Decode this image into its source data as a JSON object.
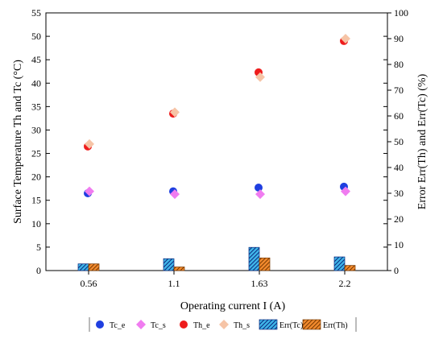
{
  "chart_data": {
    "type": "scatter",
    "categories": [
      "0.56",
      "1.1",
      "1.63",
      "2.2"
    ],
    "xlabel": "Operating current I (A)",
    "ylabel_left": "Surface Temperature Th and Tc (°C)",
    "ylabel_right": "Error Err(Th) and Err(Tc) (%)",
    "ylim_left": [
      0,
      55
    ],
    "yticks_left": [
      0,
      5,
      10,
      15,
      20,
      25,
      30,
      35,
      40,
      45,
      50,
      55
    ],
    "ylim_right": [
      0,
      100
    ],
    "yticks_right": [
      0,
      10,
      20,
      30,
      40,
      50,
      60,
      70,
      80,
      90,
      100
    ],
    "grid": false,
    "legend_position": "bottom",
    "series": [
      {
        "name": "Tc_e",
        "kind": "point",
        "axis": "left",
        "marker": "circle",
        "color": "#1f3fe0",
        "values": [
          16.5,
          16.9,
          17.7,
          17.9
        ]
      },
      {
        "name": "Tc_s",
        "kind": "point",
        "axis": "left",
        "marker": "diamond",
        "color": "#f07cf0",
        "values": [
          16.9,
          16.3,
          16.3,
          16.9
        ]
      },
      {
        "name": "Th_e",
        "kind": "point",
        "axis": "left",
        "marker": "circle",
        "color": "#ee1c1c",
        "values": [
          26.5,
          33.5,
          42.3,
          49.0
        ]
      },
      {
        "name": "Th_s",
        "kind": "point",
        "axis": "left",
        "marker": "diamond",
        "color": "#f6c4a6",
        "values": [
          27.0,
          33.8,
          41.3,
          49.5
        ]
      },
      {
        "name": "Err(Tc)",
        "kind": "bar",
        "axis": "right",
        "color": "#3fb6e8",
        "hatch": "blue",
        "values": [
          2.6,
          4.6,
          9.0,
          5.3
        ]
      },
      {
        "name": "Err(Th)",
        "kind": "bar",
        "axis": "right",
        "color": "#f28a2e",
        "hatch": "orange",
        "values": [
          2.6,
          1.4,
          4.9,
          2.0
        ]
      }
    ]
  }
}
